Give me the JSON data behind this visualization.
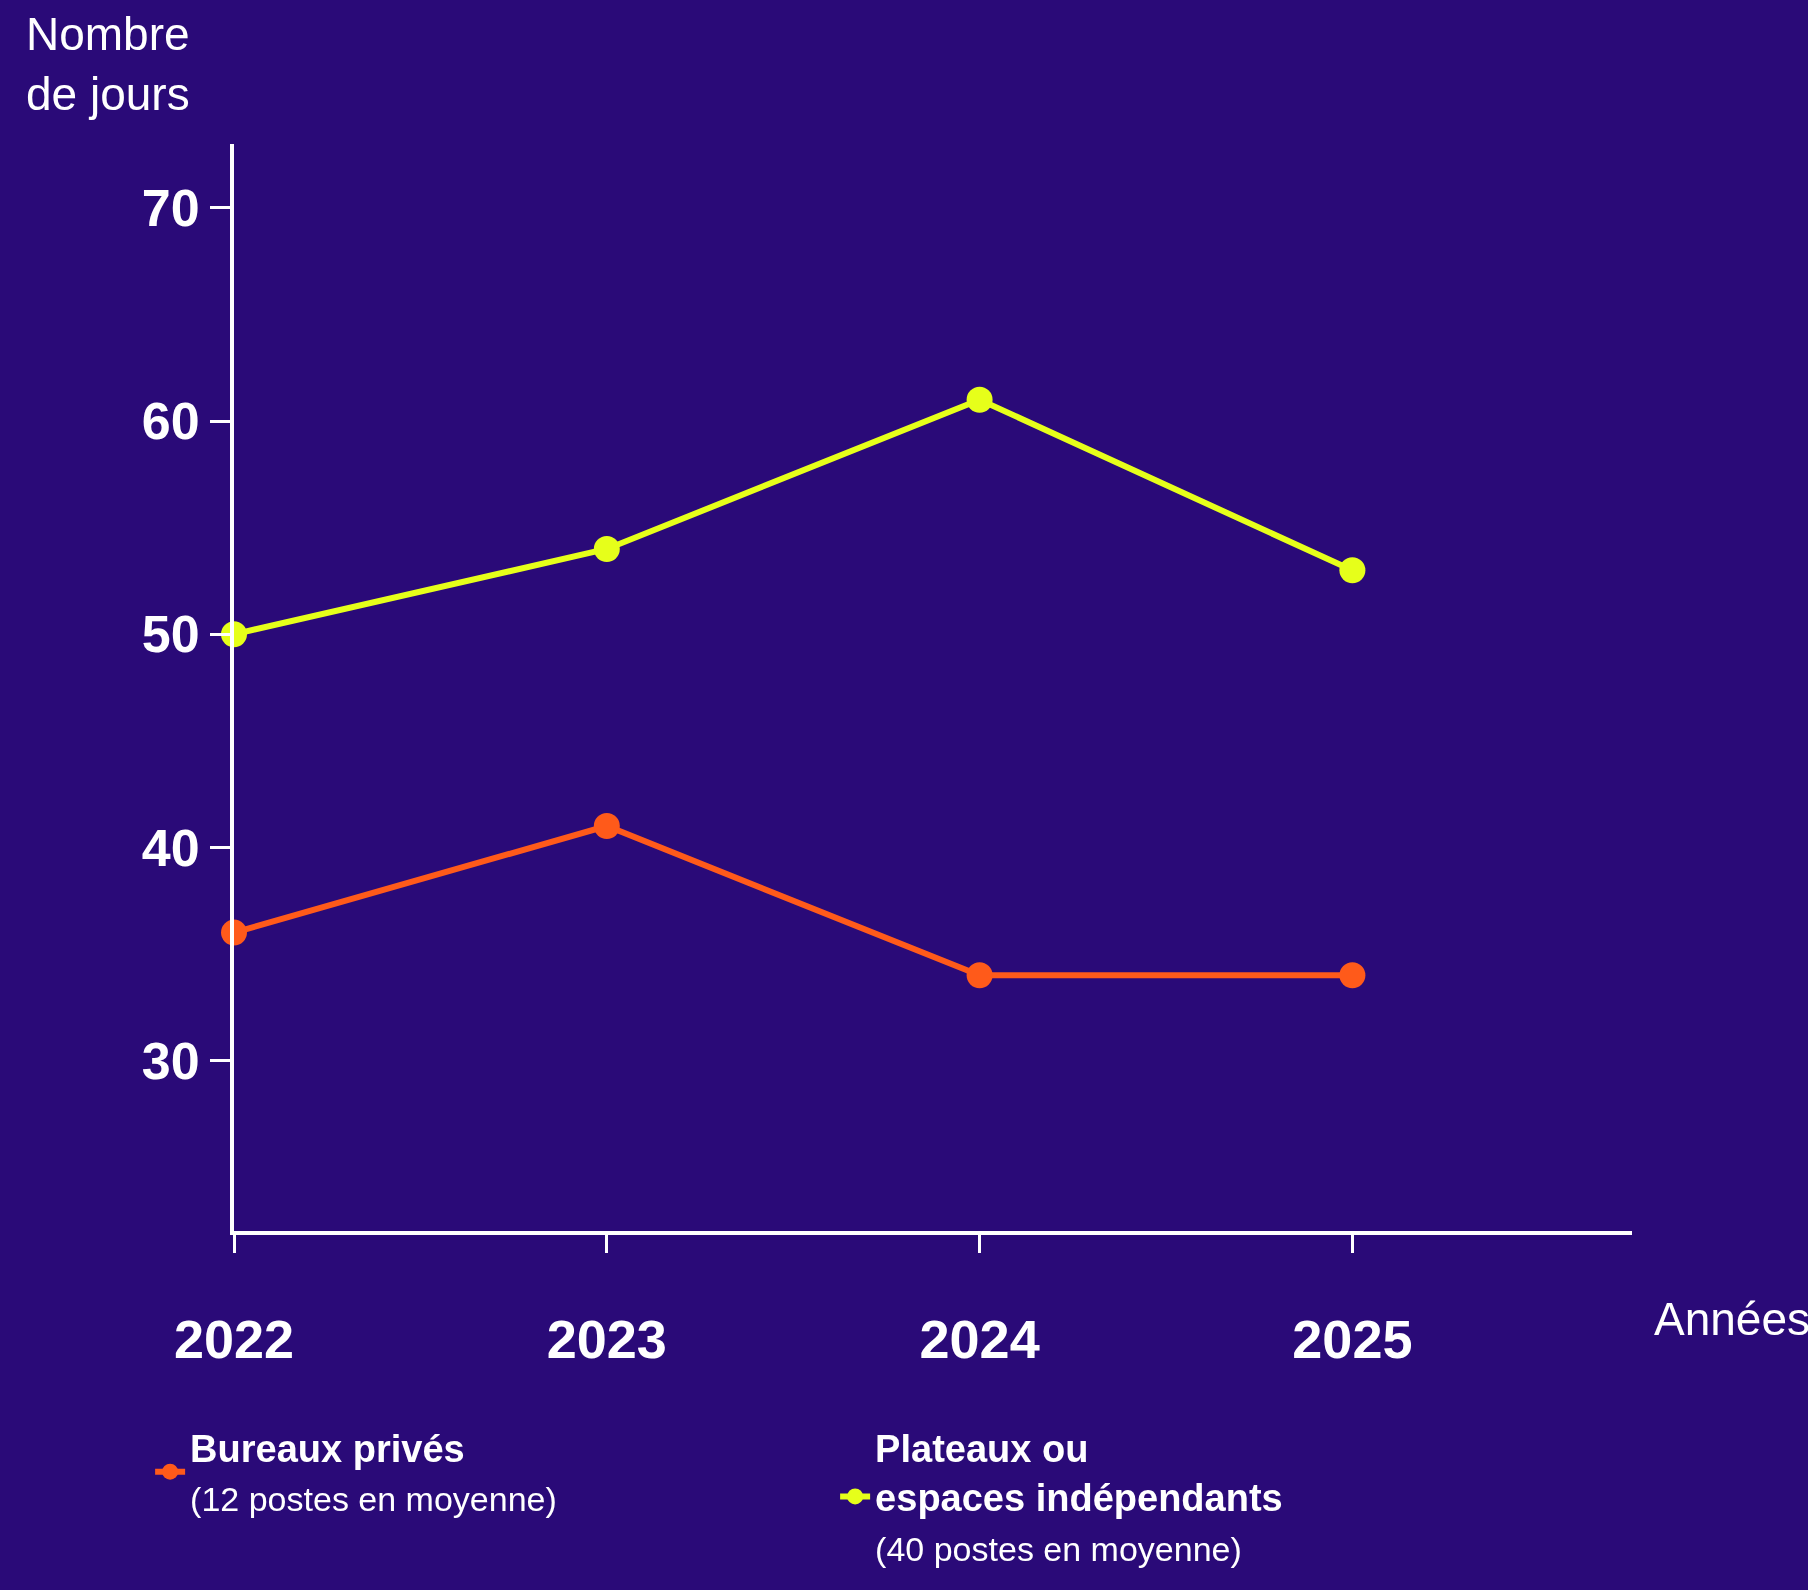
{
  "chart_data": {
    "type": "line",
    "ylabel": "Nombre\nde jours",
    "xlabel": "Années",
    "categories": [
      "2022",
      "2023",
      "2024",
      "2025"
    ],
    "series": [
      {
        "name": "Bureaux privés\n(12 postes en moyenne)",
        "color": "#ff5a1a",
        "values": [
          36,
          41,
          34,
          34
        ]
      },
      {
        "name": "Plateaux ou\nespaces indépendants\n(40 postes en moyenne)",
        "color": "#e6ff1a",
        "values": [
          50,
          54,
          61,
          53
        ]
      }
    ],
    "ylim": [
      22,
      73
    ],
    "yticks": [
      30,
      40,
      50,
      60,
      70
    ],
    "grid": false,
    "legend": "bottom",
    "marker": "circle",
    "line_style": "solid"
  }
}
